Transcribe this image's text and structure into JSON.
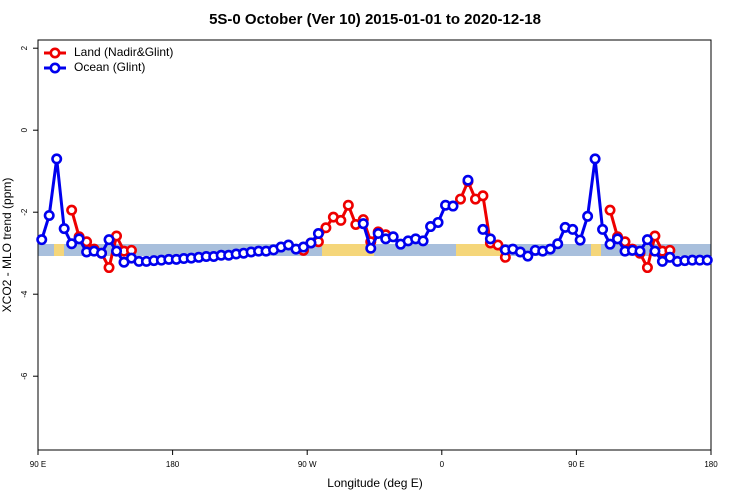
{
  "chart_data": {
    "type": "line",
    "title": "5S-0 October (Ver 10)   2015-01-01 to 2020-12-18",
    "xlabel": "Longitude (deg E)",
    "ylabel": "XCO2 - MLO trend (ppm)",
    "xlim": [
      90,
      540
    ],
    "ylim": [
      -7.8,
      2.2
    ],
    "xticks": [
      {
        "value": 90,
        "label": "90 E"
      },
      {
        "value": 180,
        "label": "180"
      },
      {
        "value": 270,
        "label": "90 W"
      },
      {
        "value": 360,
        "label": "0"
      },
      {
        "value": 450,
        "label": "90 E"
      },
      {
        "value": 540,
        "label": "180"
      }
    ],
    "yticks": [
      2,
      0,
      -2,
      -4,
      -6
    ],
    "legend": "top-left",
    "x": [
      92.5,
      97.5,
      102.5,
      107.5,
      112.5,
      117.5,
      122.5,
      127.5,
      132.5,
      137.5,
      142.5,
      147.5,
      152.5,
      157.5,
      162.5,
      167.5,
      172.5,
      177.5,
      182.5,
      187.5,
      192.5,
      197.5,
      202.5,
      207.5,
      212.5,
      217.5,
      222.5,
      227.5,
      232.5,
      237.5,
      242.5,
      247.5,
      252.5,
      257.5,
      262.5,
      267.5,
      272.5,
      277.5,
      282.5,
      287.5,
      292.5,
      297.5,
      302.5,
      307.5,
      312.5,
      317.5,
      322.5,
      327.5,
      332.5,
      337.5,
      342.5,
      347.5,
      352.5,
      357.5,
      362.5,
      367.5,
      372.5,
      377.5,
      382.5,
      387.5,
      392.5,
      397.5,
      402.5,
      407.5,
      412.5,
      417.5,
      422.5,
      427.5,
      432.5,
      437.5,
      442.5,
      447.5,
      452.5,
      457.5,
      462.5,
      467.5,
      472.5,
      477.5,
      482.5,
      487.5,
      492.5,
      497.5,
      502.5,
      507.5,
      512.5,
      517.5,
      522.5,
      527.5,
      532.5,
      537.5
    ],
    "series": [
      {
        "name": "Land (Nadir&Glint)",
        "color": "#ee0000",
        "values": [
          null,
          null,
          null,
          null,
          -1.95,
          -2.6,
          -2.72,
          -2.9,
          -3.0,
          -3.35,
          -2.58,
          -2.95,
          -2.93,
          null,
          null,
          null,
          null,
          null,
          null,
          null,
          null,
          null,
          null,
          null,
          null,
          null,
          null,
          null,
          null,
          null,
          null,
          null,
          null,
          null,
          null,
          -2.93,
          -2.75,
          -2.72,
          -2.38,
          -2.12,
          -2.2,
          -1.83,
          -2.3,
          -2.18,
          -2.72,
          -2.48,
          -2.55,
          null,
          null,
          null,
          null,
          null,
          null,
          null,
          null,
          null,
          -1.68,
          -1.25,
          -1.68,
          -1.6,
          -2.75,
          -2.8,
          -3.1,
          null,
          null,
          null,
          null,
          null,
          null,
          null,
          null,
          null,
          null,
          null,
          null,
          null,
          -1.95,
          -2.6,
          -2.72,
          -2.9,
          -3.0,
          -3.35,
          -2.58,
          -2.95,
          -2.93,
          null,
          null,
          null,
          null,
          null
        ]
      },
      {
        "name": "Ocean (Glint)",
        "color": "#0000ee",
        "values": [
          -2.67,
          -2.08,
          -0.7,
          -2.4,
          -2.77,
          -2.65,
          -2.97,
          -2.95,
          -3.0,
          -2.67,
          -2.95,
          -3.22,
          -3.12,
          -3.2,
          -3.2,
          -3.18,
          -3.17,
          -3.15,
          -3.15,
          -3.13,
          -3.12,
          -3.1,
          -3.08,
          -3.08,
          -3.05,
          -3.05,
          -3.02,
          -3.0,
          -2.97,
          -2.95,
          -2.95,
          -2.92,
          -2.85,
          -2.8,
          -2.9,
          -2.85,
          -2.75,
          -2.52,
          null,
          null,
          null,
          null,
          null,
          -2.28,
          -2.88,
          -2.52,
          -2.65,
          -2.6,
          -2.78,
          -2.7,
          -2.65,
          -2.7,
          -2.35,
          -2.25,
          -1.83,
          -1.85,
          null,
          -1.22,
          null,
          -2.42,
          -2.65,
          null,
          -2.92,
          -2.9,
          -2.97,
          -3.07,
          -2.93,
          -2.95,
          -2.9,
          -2.77,
          -2.37,
          -2.42,
          -2.68,
          -2.1,
          -0.7,
          -2.42,
          -2.78,
          -2.65,
          -2.95,
          -2.93,
          -2.95,
          -2.67,
          -2.95,
          -3.2,
          -3.1,
          -3.2,
          -3.18,
          -3.17,
          -3.17,
          -3.17
        ]
      }
    ]
  }
}
